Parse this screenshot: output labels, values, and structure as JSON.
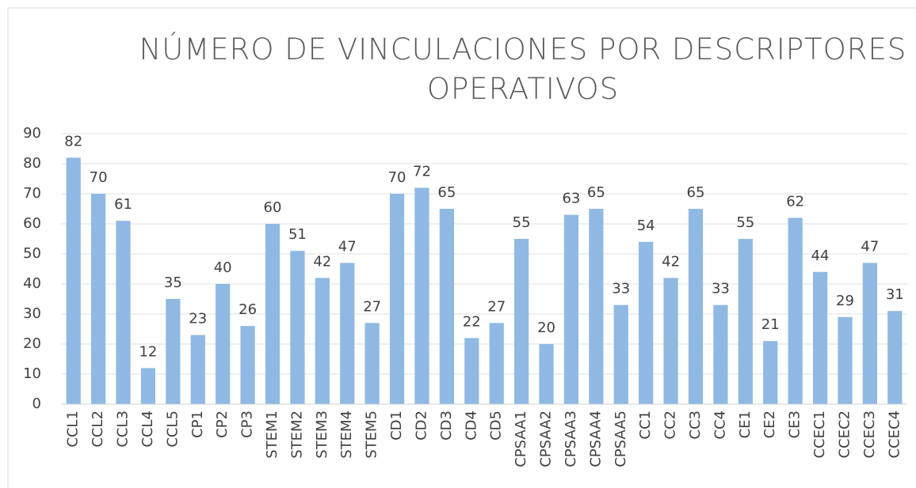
{
  "chart_data": {
    "type": "bar",
    "title": "NÚMERO DE VINCULACIONES POR DESCRIPTORES OPERATIVOS",
    "categories": [
      "CCL1",
      "CCL2",
      "CCL3",
      "CCL4",
      "CCL5",
      "CP1",
      "CP2",
      "CP3",
      "STEM1",
      "STEM2",
      "STEM3",
      "STEM4",
      "STEM5",
      "CD1",
      "CD2",
      "CD3",
      "CD4",
      "CD5",
      "CPSAA1",
      "CPSAA2",
      "CPSAA3",
      "CPSAA4",
      "CPSAA5",
      "CC1",
      "CC2",
      "CC3",
      "CC4",
      "CE1",
      "CE2",
      "CE3",
      "CCEC1",
      "CCEC2",
      "CCEC3",
      "CCEC4"
    ],
    "values": [
      82,
      70,
      61,
      12,
      35,
      23,
      40,
      26,
      60,
      51,
      42,
      47,
      27,
      70,
      72,
      65,
      22,
      27,
      55,
      20,
      63,
      65,
      33,
      54,
      42,
      65,
      33,
      55,
      21,
      62,
      44,
      29,
      47,
      31
    ],
    "color": "#8fb9e3",
    "ylim": [
      0,
      90
    ],
    "yticks": [
      0,
      10,
      20,
      30,
      40,
      50,
      60,
      70,
      80,
      90
    ],
    "grid": true
  }
}
